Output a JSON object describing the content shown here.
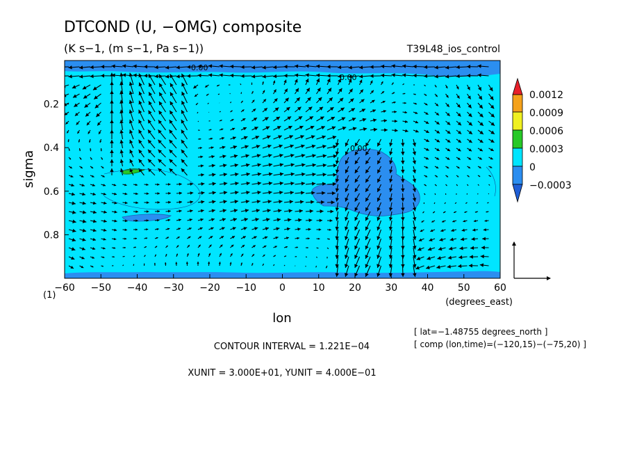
{
  "chart_data": {
    "type": "contour+vector",
    "title": "DTCOND (U, −OMG) composite",
    "subtitle": "(K s−1, (m s−1, Pa s−1))",
    "run_label": "T39L48_ios_control",
    "xlabel": "lon",
    "xunit_label": "(degrees_east)",
    "ylabel": "sigma",
    "corner_label": "(1)",
    "xlim": [
      -60,
      60
    ],
    "ylim": [
      1.0,
      0.0
    ],
    "y_reversed": true,
    "x_ticks": [
      -60,
      -50,
      -40,
      -30,
      -20,
      -10,
      0,
      10,
      20,
      30,
      40,
      50,
      60
    ],
    "x_tick_labels": [
      "−60",
      "−50",
      "−40",
      "−30",
      "−20",
      "−10",
      "0",
      "10",
      "20",
      "30",
      "40",
      "50",
      "60"
    ],
    "y_ticks": [
      0.2,
      0.4,
      0.6,
      0.8
    ],
    "y_tick_labels": [
      "0.2",
      "0.4",
      "0.6",
      "0.8"
    ],
    "colorbar": {
      "levels": [
        "0.0012",
        "0.0009",
        "0.0006",
        "0.0003",
        "0",
        "−0.0003"
      ],
      "colors": [
        "#e8202a",
        "#f5a21b",
        "#f0f020",
        "#27c927",
        "#00e5ff",
        "#2b8ef0",
        "#1f5fd6"
      ]
    },
    "contour_labels": [
      "0.00",
      "0.00",
      "0.00"
    ],
    "negative_regions": [
      {
        "name": "central dip",
        "lon_range": [
          8,
          32
        ],
        "sigma_range": [
          0.4,
          0.7
        ]
      },
      {
        "name": "top band",
        "lon_range": [
          -60,
          60
        ],
        "sigma_range": [
          0.0,
          0.06
        ]
      },
      {
        "name": "bottom band",
        "lon_range": [
          -60,
          60
        ],
        "sigma_range": [
          0.97,
          1.0
        ]
      },
      {
        "name": "small west patch",
        "lon_range": [
          -47,
          -27
        ],
        "sigma_range": [
          0.7,
          0.73
        ]
      }
    ],
    "positive_patch": {
      "lon": -43,
      "sigma": 0.51,
      "level": "0.0003"
    },
    "info_lines": [
      "[ lat=−1.48755 degrees_north ]",
      "[ comp (lon,time)=(−120,15)−(−75,20) ]"
    ],
    "contour_interval": "CONTOUR INTERVAL = 1.221E−04",
    "unit_vector": "XUNIT = 3.000E+01, YUNIT = 4.000E−01"
  }
}
